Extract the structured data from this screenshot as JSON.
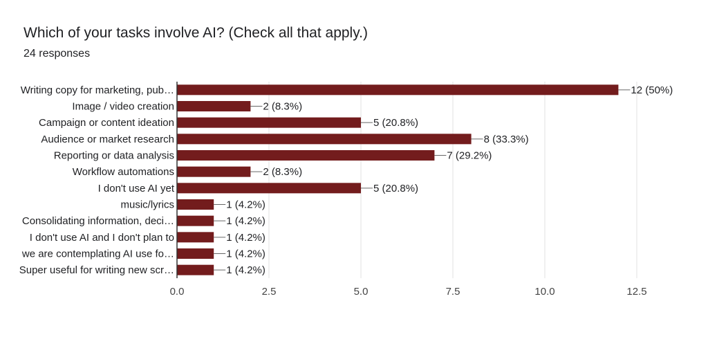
{
  "header": {
    "title": "Which of your tasks involve AI? (Check all that apply.)",
    "subtitle": "24 responses"
  },
  "colors": {
    "bar": "#731c1d",
    "grid": "#e0e0e0",
    "axis": "#333333",
    "leader": "#666666"
  },
  "chart_data": {
    "type": "bar",
    "orientation": "horizontal",
    "title": "Which of your tasks involve AI? (Check all that apply.)",
    "subtitle": "24 responses",
    "xlabel": "",
    "ylabel": "",
    "xlim": [
      0,
      12.5
    ],
    "ticks": [
      "0.0",
      "2.5",
      "5.0",
      "7.5",
      "10.0",
      "12.5"
    ],
    "tick_values": [
      0,
      2.5,
      5,
      7.5,
      10,
      12.5
    ],
    "grid": true,
    "legend": "none",
    "categories": [
      "Writing copy for marketing, pub…",
      "Image / video creation",
      "Campaign or content ideation",
      "Audience or market research",
      "Reporting or data analysis",
      "Workflow automations",
      "I don't use AI yet",
      "music/lyrics",
      "Consolidating information, deci…",
      "I don't use AI and I don't plan to",
      "we are contemplating AI use fo…",
      "Super useful for writing new scr…"
    ],
    "values": [
      12,
      2,
      5,
      8,
      7,
      2,
      5,
      1,
      1,
      1,
      1,
      1
    ],
    "value_labels": [
      "12 (50%)",
      "2 (8.3%)",
      "5 (20.8%)",
      "8 (33.3%)",
      "7 (29.2%)",
      "2 (8.3%)",
      "5 (20.8%)",
      "1 (4.2%)",
      "1 (4.2%)",
      "1 (4.2%)",
      "1 (4.2%)",
      "1 (4.2%)"
    ]
  }
}
